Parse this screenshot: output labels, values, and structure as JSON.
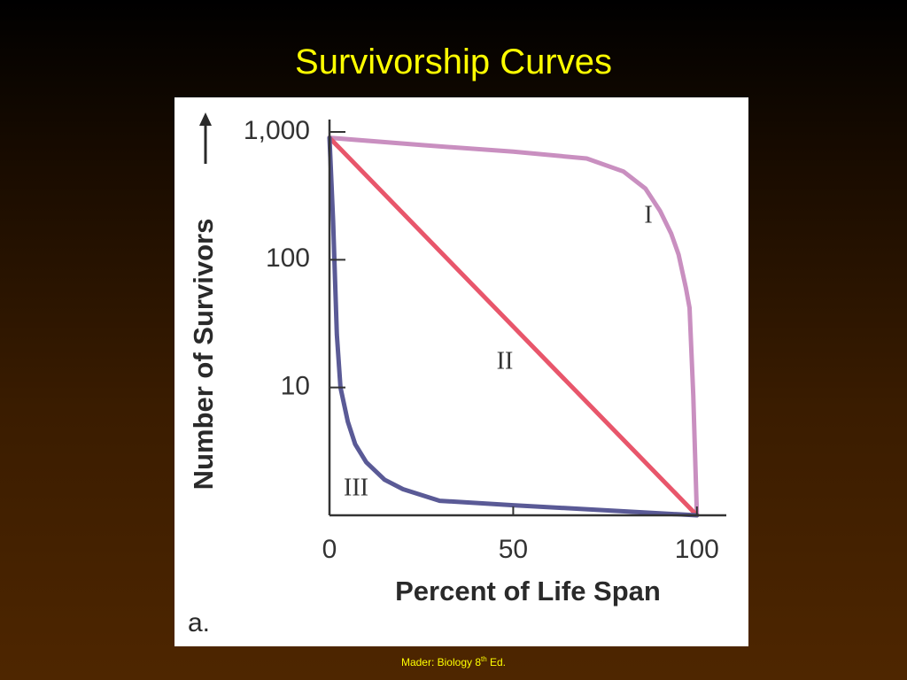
{
  "slide_title": "Survivorship Curves",
  "chart_data": {
    "type": "line",
    "x_label": "Percent of Life Span",
    "y_label": "Number of Survivors",
    "panel_label": "a.",
    "log_y": true,
    "xlim": [
      0,
      108
    ],
    "ylim": [
      1,
      1250
    ],
    "xticks": [
      0,
      50,
      100
    ],
    "yticks": [
      10,
      100,
      {
        "value": 1000,
        "label": "1,000"
      }
    ],
    "series": [
      {
        "name": "I",
        "color": "#c98fc0",
        "x": [
          0,
          25,
          50,
          70,
          80,
          86,
          90,
          93,
          95,
          97,
          98,
          99,
          100
        ],
        "values": [
          900,
          790,
          700,
          620,
          490,
          360,
          240,
          160,
          110,
          60,
          42,
          8.7,
          1
        ]
      },
      {
        "name": "II",
        "color": "#e8566b",
        "x": [
          0,
          100
        ],
        "values": [
          900,
          1
        ]
      },
      {
        "name": "III",
        "color": "#5a5a96",
        "x": [
          0,
          1,
          2,
          3,
          5,
          7,
          10,
          15,
          20,
          30,
          50,
          100
        ],
        "values": [
          900,
          200,
          26,
          10,
          5.4,
          3.6,
          2.6,
          1.9,
          1.6,
          1.3,
          1.2,
          1
        ]
      }
    ]
  },
  "footer": {
    "text": "Mader: Biology 8",
    "superscript": "th",
    "suffix": " Ed."
  }
}
